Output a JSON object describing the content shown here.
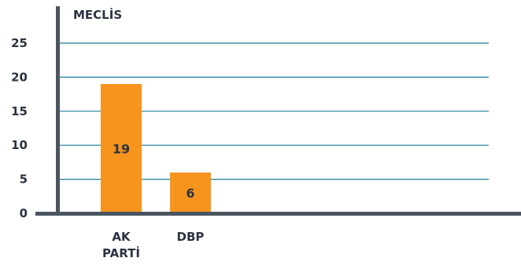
{
  "chart_data": {
    "type": "bar",
    "title": "MECLİS",
    "categories": [
      "AK PARTİ",
      "DBP"
    ],
    "category_lines": [
      [
        "AK",
        "PARTİ"
      ],
      [
        "DBP"
      ]
    ],
    "values": [
      19,
      6
    ],
    "ylim": [
      0,
      25
    ],
    "yticks": [
      0,
      5,
      10,
      15,
      20,
      25
    ],
    "grid": true,
    "xlabel": "",
    "ylabel": ""
  },
  "colors": {
    "bar": "#f7941d",
    "grid": "#1a7f95",
    "axis": "#4a5560",
    "text": "#2b3340"
  }
}
